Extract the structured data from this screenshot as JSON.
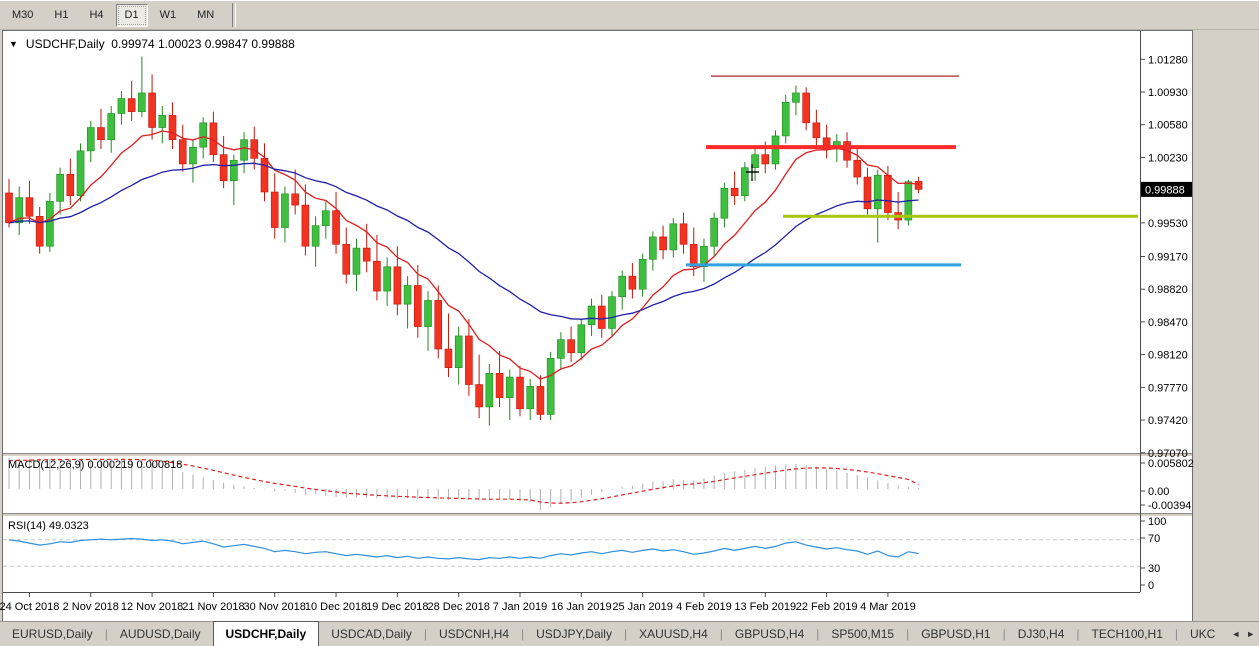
{
  "icons": {
    "collapse_arrow": "▼",
    "scroll_left": "◄",
    "scroll_right": "►"
  },
  "toolbar": {
    "timeframes": [
      "M30",
      "H1",
      "H4",
      "D1",
      "W1",
      "MN"
    ],
    "active_timeframe": "D1"
  },
  "chart": {
    "title": {
      "symbol_period": "USDCHF,Daily",
      "ohlc_text": "0.99974 1.00023 0.99847 0.99888"
    },
    "current_price": "0.99888"
  },
  "chart_data": {
    "type": "candlestick",
    "title": "USDCHF,Daily",
    "symbol": "USDCHF",
    "timeframe": "Daily",
    "price_axis_values": [
      1.0128,
      1.0093,
      1.0058,
      1.0023,
      0.9953,
      0.9917,
      0.9882,
      0.9847,
      0.9812,
      0.9777,
      0.9742,
      0.9707
    ],
    "current_price": 0.99888,
    "dates": [
      "24 Oct 2018",
      "2 Nov 2018",
      "12 Nov 2018",
      "21 Nov 2018",
      "30 Nov 2018",
      "10 Dec 2018",
      "19 Dec 2018",
      "28 Dec 2018",
      "7 Jan 2019",
      "16 Jan 2019",
      "25 Jan 2019",
      "4 Feb 2019",
      "13 Feb 2019",
      "22 Feb 2019",
      "4 Mar 2019"
    ],
    "date_tick_bar_indices": [
      2,
      8,
      14,
      20,
      26,
      32,
      38,
      44,
      50,
      56,
      62,
      68,
      74,
      80,
      86
    ],
    "candles": [
      [
        0.9985,
        1.0,
        0.9948,
        0.9953
      ],
      [
        0.9953,
        0.9992,
        0.994,
        0.998
      ],
      [
        0.998,
        0.9998,
        0.9952,
        0.996
      ],
      [
        0.996,
        0.997,
        0.992,
        0.9928
      ],
      [
        0.9928,
        0.9985,
        0.9922,
        0.9976
      ],
      [
        0.9976,
        1.0012,
        0.9962,
        1.0005
      ],
      [
        1.0005,
        1.0022,
        0.9972,
        0.9982
      ],
      [
        0.9982,
        1.0038,
        0.9976,
        1.003
      ],
      [
        1.003,
        1.0062,
        1.0018,
        1.0055
      ],
      [
        1.0055,
        1.0075,
        1.0032,
        1.0042
      ],
      [
        1.0042,
        1.0078,
        1.0028,
        1.007
      ],
      [
        1.007,
        1.0094,
        1.0058,
        1.0086
      ],
      [
        1.0086,
        1.0105,
        1.0062,
        1.0072
      ],
      [
        1.0072,
        1.0131,
        1.0066,
        1.0092
      ],
      [
        1.0092,
        1.0112,
        1.0042,
        1.0055
      ],
      [
        1.0055,
        1.0078,
        1.0038,
        1.0068
      ],
      [
        1.0068,
        1.0082,
        1.0032,
        1.0042
      ],
      [
        1.0042,
        1.0058,
        1.0008,
        1.0016
      ],
      [
        1.0016,
        1.0042,
        0.9996,
        1.0034
      ],
      [
        1.0034,
        1.0066,
        1.0022,
        1.006
      ],
      [
        1.006,
        1.0072,
        1.0018,
        1.0026
      ],
      [
        1.0026,
        1.0046,
        0.999,
        0.9998
      ],
      [
        0.9998,
        1.0026,
        0.9972,
        1.002
      ],
      [
        1.002,
        1.005,
        1.0006,
        1.0042
      ],
      [
        1.0042,
        1.0056,
        1.001,
        1.0022
      ],
      [
        1.0022,
        1.0038,
        0.9976,
        0.9986
      ],
      [
        0.9986,
        1.0006,
        0.9936,
        0.9948
      ],
      [
        0.9948,
        0.9992,
        0.9932,
        0.9984
      ],
      [
        0.9984,
        1.001,
        0.9962,
        0.9972
      ],
      [
        0.9972,
        0.9994,
        0.9918,
        0.9928
      ],
      [
        0.9928,
        0.996,
        0.9906,
        0.995
      ],
      [
        0.995,
        0.9976,
        0.9936,
        0.9966
      ],
      [
        0.9966,
        0.9986,
        0.992,
        0.993
      ],
      [
        0.993,
        0.9948,
        0.9888,
        0.9898
      ],
      [
        0.9898,
        0.9936,
        0.988,
        0.9926
      ],
      [
        0.9926,
        0.9952,
        0.99,
        0.9912
      ],
      [
        0.9912,
        0.994,
        0.987,
        0.988
      ],
      [
        0.988,
        0.9916,
        0.9864,
        0.9906
      ],
      [
        0.9906,
        0.9928,
        0.9854,
        0.9866
      ],
      [
        0.9866,
        0.9896,
        0.984,
        0.9886
      ],
      [
        0.9886,
        0.9908,
        0.983,
        0.9842
      ],
      [
        0.9842,
        0.988,
        0.9816,
        0.987
      ],
      [
        0.987,
        0.9886,
        0.9808,
        0.9818
      ],
      [
        0.9818,
        0.9856,
        0.9788,
        0.9798
      ],
      [
        0.9798,
        0.9842,
        0.978,
        0.9832
      ],
      [
        0.9832,
        0.985,
        0.9768,
        0.978
      ],
      [
        0.978,
        0.9812,
        0.9744,
        0.9756
      ],
      [
        0.9756,
        0.9802,
        0.9736,
        0.9792
      ],
      [
        0.9792,
        0.9816,
        0.9756,
        0.9766
      ],
      [
        0.9766,
        0.9796,
        0.9742,
        0.9788
      ],
      [
        0.9788,
        0.98,
        0.9746,
        0.9754
      ],
      [
        0.9754,
        0.9786,
        0.9742,
        0.9778
      ],
      [
        0.9778,
        0.979,
        0.9742,
        0.9748
      ],
      [
        0.9748,
        0.9815,
        0.9742,
        0.9808
      ],
      [
        0.9808,
        0.9836,
        0.9796,
        0.9828
      ],
      [
        0.9828,
        0.9842,
        0.9804,
        0.9814
      ],
      [
        0.9814,
        0.985,
        0.9806,
        0.9844
      ],
      [
        0.9844,
        0.9872,
        0.9832,
        0.9864
      ],
      [
        0.9864,
        0.9876,
        0.983,
        0.984
      ],
      [
        0.984,
        0.988,
        0.9832,
        0.9874
      ],
      [
        0.9874,
        0.9902,
        0.986,
        0.9896
      ],
      [
        0.9896,
        0.991,
        0.9872,
        0.9882
      ],
      [
        0.9882,
        0.992,
        0.9874,
        0.9914
      ],
      [
        0.9914,
        0.9944,
        0.9902,
        0.9938
      ],
      [
        0.9938,
        0.995,
        0.9914,
        0.9924
      ],
      [
        0.9924,
        0.9958,
        0.9916,
        0.9952
      ],
      [
        0.9952,
        0.9964,
        0.992,
        0.993
      ],
      [
        0.993,
        0.9948,
        0.9896,
        0.9906
      ],
      [
        0.9906,
        0.9936,
        0.989,
        0.9928
      ],
      [
        0.9928,
        0.9964,
        0.9918,
        0.9958
      ],
      [
        0.9958,
        0.9996,
        0.9948,
        0.999
      ],
      [
        0.999,
        1.0008,
        0.9972,
        0.9982
      ],
      [
        0.9982,
        1.0018,
        0.9976,
        1.0012
      ],
      [
        1.0012,
        1.0032,
        0.9998,
        1.0026
      ],
      [
        1.0026,
        1.004,
        1.0006,
        1.0016
      ],
      [
        1.0016,
        1.0052,
        1.001,
        1.0046
      ],
      [
        1.0046,
        1.009,
        1.0038,
        1.0082
      ],
      [
        1.0082,
        1.01,
        1.0068,
        1.0092
      ],
      [
        1.0092,
        1.0098,
        1.0052,
        1.006
      ],
      [
        1.006,
        1.0074,
        1.0036,
        1.0044
      ],
      [
        1.0044,
        1.0058,
        1.0022,
        1.0032
      ],
      [
        1.0032,
        1.0048,
        1.0018,
        1.004
      ],
      [
        1.004,
        1.005,
        1.0012,
        1.002
      ],
      [
        1.002,
        1.0034,
        0.9994,
        1.0002
      ],
      [
        1.0002,
        1.0012,
        0.9962,
        0.9968
      ],
      [
        0.9968,
        1.001,
        0.9932,
        1.0004
      ],
      [
        1.0004,
        1.0014,
        0.9956,
        0.9964
      ],
      [
        0.9964,
        0.9986,
        0.9946,
        0.9956
      ],
      [
        0.9956,
        0.9999,
        0.995,
        0.9997
      ],
      [
        0.99974,
        1.00023,
        0.99847,
        0.99888
      ]
    ],
    "bull_color": "#3fbf3f",
    "bear_color": "#f23322",
    "moving_averages": [
      {
        "name": "fast-ma",
        "period": 10,
        "color": "#dd1f1f"
      },
      {
        "name": "slow-ma",
        "period": 30,
        "color": "#2121a8"
      }
    ],
    "hlines": [
      {
        "price": 1.011,
        "x1": 710,
        "x2": 958,
        "color": "#b84a4a",
        "width": 1.5
      },
      {
        "price": 1.0034,
        "x1": 705,
        "x2": 955,
        "color": "#ff2a2a",
        "width": 4
      },
      {
        "price": 0.996,
        "x1": 782,
        "x2": 1137,
        "color": "#a9c70f",
        "width": 3
      },
      {
        "price": 0.9908,
        "x1": 685,
        "x2": 960,
        "color": "#35a0e0",
        "width": 3
      }
    ],
    "macd": {
      "label": "MACD(12,26,9)",
      "value_main": "0.000219",
      "value_signal": "0.000818",
      "axis_labels": [
        "0.005802",
        "0.00",
        "-0.00394"
      ],
      "histogram_color": "#b0b0b0",
      "signal_color": "#dd2222",
      "histogram": [
        0.0058,
        0.00575,
        0.0057,
        0.00572,
        0.00565,
        0.00558,
        0.0056,
        0.00552,
        0.00555,
        0.00558,
        0.0056,
        0.00548,
        0.0054,
        0.00545,
        0.005,
        0.0044,
        0.0038,
        0.0032,
        0.0027,
        0.0022,
        0.0017,
        0.0012,
        0.0008,
        0.0005,
        0.0002,
        -0.0001,
        -0.0004,
        -0.0003,
        -0.0007,
        -0.0011,
        -0.001,
        -0.0013,
        -0.0015,
        -0.0016,
        -0.0015,
        -0.0016,
        -0.00175,
        -0.00165,
        -0.0018,
        -0.0017,
        -0.0019,
        -0.0018,
        -0.00195,
        -0.002,
        -0.0019,
        -0.002,
        -0.00215,
        -0.002,
        -0.00195,
        -0.0019,
        -0.0022,
        -0.0024,
        -0.00394,
        -0.0034,
        -0.0028,
        -0.0022,
        -0.0016,
        -0.0011,
        -0.0006,
        -0.0001,
        0.0004,
        0.0006,
        0.001,
        0.0014,
        0.0015,
        0.0018,
        0.0017,
        0.0016,
        0.002,
        0.0025,
        0.003,
        0.0033,
        0.0036,
        0.0039,
        0.0042,
        0.0044,
        0.0046,
        0.0047,
        0.0045,
        0.0042,
        0.0038,
        0.0034,
        0.003,
        0.0026,
        0.0021,
        0.0016,
        0.0011,
        0.0007,
        0.0004,
        0.000219
      ],
      "signal": [
        0.0053,
        0.00535,
        0.0054,
        0.00545,
        0.00548,
        0.0055,
        0.00552,
        0.00553,
        0.00554,
        0.00555,
        0.00556,
        0.00555,
        0.00553,
        0.00551,
        0.0054,
        0.0052,
        0.00495,
        0.00465,
        0.0043,
        0.0039,
        0.0035,
        0.00305,
        0.0026,
        0.00218,
        0.00178,
        0.0014,
        0.00104,
        0.00077,
        0.00048,
        0.00016,
        -7e-05,
        -0.00032,
        -0.00055,
        -0.00076,
        -0.00091,
        -0.00105,
        -0.00119,
        -0.00128,
        -0.00139,
        -0.00145,
        -0.00154,
        -0.00159,
        -0.00166,
        -0.00173,
        -0.00176,
        -0.00181,
        -0.00188,
        -0.0019,
        -0.00191,
        -0.00191,
        -0.00197,
        -0.00205,
        -0.00243,
        -0.00262,
        -0.00266,
        -0.00257,
        -0.00237,
        -0.00212,
        -0.00182,
        -0.00147,
        -0.0011,
        -0.00076,
        -0.00041,
        -5e-05,
        0.00026,
        0.00057,
        0.0008,
        0.00096,
        0.00117,
        0.00143,
        0.00175,
        0.00206,
        0.00237,
        0.00267,
        0.00298,
        0.00326,
        0.00353,
        0.00376,
        0.00391,
        0.00397,
        0.00393,
        0.00383,
        0.00366,
        0.00345,
        0.00318,
        0.00287,
        0.00251,
        0.00215,
        0.0018,
        0.000818
      ]
    },
    "rsi": {
      "label": "RSI(14)",
      "value": "49.0323",
      "axis_labels": [
        "100",
        "70",
        "30",
        "0"
      ],
      "levels": [
        70,
        30
      ],
      "line_color": "#2f8fdd",
      "series": [
        70,
        68,
        65,
        62,
        64,
        67,
        66,
        69,
        70,
        71,
        70,
        71,
        72,
        71,
        69,
        70,
        68,
        64,
        66,
        68,
        64,
        59,
        61,
        63,
        60,
        57,
        52,
        54,
        52,
        49,
        51,
        52,
        49,
        46,
        48,
        46,
        44,
        46,
        43,
        45,
        42,
        44,
        42,
        41,
        43,
        41,
        40,
        43,
        42,
        44,
        42,
        44,
        42,
        46,
        49,
        47,
        50,
        52,
        49,
        52,
        54,
        51,
        54,
        56,
        53,
        55,
        52,
        48,
        50,
        53,
        57,
        54,
        57,
        60,
        57,
        60,
        65,
        67,
        62,
        59,
        56,
        58,
        55,
        53,
        48,
        53,
        46,
        44,
        52,
        49.0323
      ]
    }
  },
  "tabs": {
    "separator": "|",
    "active": "USDCHF,Daily",
    "items": [
      "EURUSD,Daily",
      "AUDUSD,Daily",
      "USDCHF,Daily",
      "USDCAD,Daily",
      "USDCNH,H4",
      "USDJPY,Daily",
      "XAUUSD,H4",
      "GBPUSD,H4",
      "SP500,M15",
      "GBPUSD,H1",
      "DJ30,H4",
      "TECH100,H1",
      "UKC"
    ]
  }
}
